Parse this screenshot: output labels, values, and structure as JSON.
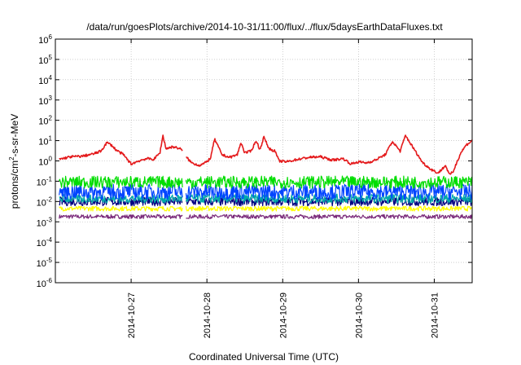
{
  "chart_data": {
    "type": "line",
    "title": "/data/run/goesPlots/archive/2014-10-31/11:00/flux/../flux/5daysEarthDataFluxes.txt",
    "xlabel": "Coordinated Universal Time (UTC)",
    "ylabel": {
      "base": "protons/cm",
      "sup": "2",
      "rest": "-s-sr-MeV"
    },
    "x_range": [
      "2014-10-26 00:00",
      "2014-10-31 12:00"
    ],
    "xticks": [
      {
        "label": "2014-10-27",
        "x": 1
      },
      {
        "label": "2014-10-28",
        "x": 2
      },
      {
        "label": "2014-10-29",
        "x": 3
      },
      {
        "label": "2014-10-30",
        "x": 4
      },
      {
        "label": "2014-10-31",
        "x": 5
      }
    ],
    "y_scale": "log",
    "ylim": [
      1e-06,
      1000000.0
    ],
    "yticks": [
      {
        "base": "10",
        "exp": "6",
        "value": 6
      },
      {
        "base": "10",
        "exp": "5",
        "value": 5
      },
      {
        "base": "10",
        "exp": "4",
        "value": 4
      },
      {
        "base": "10",
        "exp": "3",
        "value": 3
      },
      {
        "base": "10",
        "exp": "2",
        "value": 2
      },
      {
        "base": "10",
        "exp": "1",
        "value": 1
      },
      {
        "base": "10",
        "exp": "0",
        "value": 0
      },
      {
        "base": "10",
        "exp": "-1",
        "value": -1
      },
      {
        "base": "10",
        "exp": "-2",
        "value": -2
      },
      {
        "base": "10",
        "exp": "-3",
        "value": -3
      },
      {
        "base": "10",
        "exp": "-4",
        "value": -4
      },
      {
        "base": "10",
        "exp": "-5",
        "value": -5
      },
      {
        "base": "10",
        "exp": "-6",
        "value": -6
      }
    ],
    "grid": true,
    "data_gap": [
      1.68,
      1.72
    ],
    "series": [
      {
        "color": "#e41a1c",
        "noise": 0.06,
        "x": [
          0.05,
          0.2,
          0.35,
          0.5,
          0.6,
          0.68,
          0.74,
          0.8,
          0.9,
          1.0,
          1.1,
          1.2,
          1.3,
          1.38,
          1.42,
          1.46,
          1.55,
          1.65,
          1.73,
          1.8,
          1.9,
          1.98,
          2.05,
          2.1,
          2.2,
          2.3,
          2.4,
          2.45,
          2.5,
          2.58,
          2.65,
          2.7,
          2.75,
          2.82,
          2.9,
          2.95,
          3.05,
          3.2,
          3.35,
          3.5,
          3.65,
          3.8,
          3.9,
          4.0,
          4.1,
          4.2,
          4.35,
          4.45,
          4.55,
          4.62,
          4.7,
          4.78,
          4.85,
          4.95,
          5.05,
          5.15,
          5.2,
          5.25,
          5.3,
          5.35,
          5.42,
          5.5
        ],
        "y": [
          1.2,
          1.6,
          1.7,
          2.2,
          3.0,
          8.0,
          6.0,
          3.5,
          2.0,
          0.7,
          1.0,
          1.3,
          1.2,
          2.5,
          18.0,
          4.0,
          5.0,
          4.0,
          1.5,
          0.8,
          0.6,
          0.8,
          1.4,
          12.0,
          2.0,
          1.5,
          2.0,
          8.0,
          2.5,
          3.0,
          10.0,
          3.5,
          15.0,
          4.0,
          3.0,
          1.0,
          0.9,
          1.2,
          1.5,
          1.6,
          1.1,
          1.3,
          0.7,
          0.9,
          0.8,
          1.0,
          2.0,
          9.0,
          3.0,
          18.0,
          6.0,
          2.0,
          0.8,
          0.4,
          0.25,
          0.6,
          0.2,
          0.3,
          0.9,
          2.5,
          6.0,
          10.0
        ]
      },
      {
        "color": "#00dd00",
        "noise": 0.3,
        "x": [
          0.05,
          5.5
        ],
        "y": [
          0.09,
          0.09
        ]
      },
      {
        "color": "#0044ff",
        "noise": 0.38,
        "x": [
          0.05,
          5.5
        ],
        "y": [
          0.03,
          0.03
        ]
      },
      {
        "color": "#00aaaa",
        "noise": 0.22,
        "x": [
          0.05,
          5.5
        ],
        "y": [
          0.014,
          0.014
        ]
      },
      {
        "color": "#000080",
        "noise": 0.22,
        "x": [
          0.05,
          5.5
        ],
        "y": [
          0.01,
          0.01
        ]
      },
      {
        "color": "#ffff00",
        "noise": 0.12,
        "x": [
          0.05,
          5.5
        ],
        "y": [
          0.0045,
          0.0045
        ]
      },
      {
        "color": "#7a2a7a",
        "noise": 0.1,
        "x": [
          0.05,
          5.5
        ],
        "y": [
          0.0018,
          0.0018
        ]
      }
    ]
  }
}
